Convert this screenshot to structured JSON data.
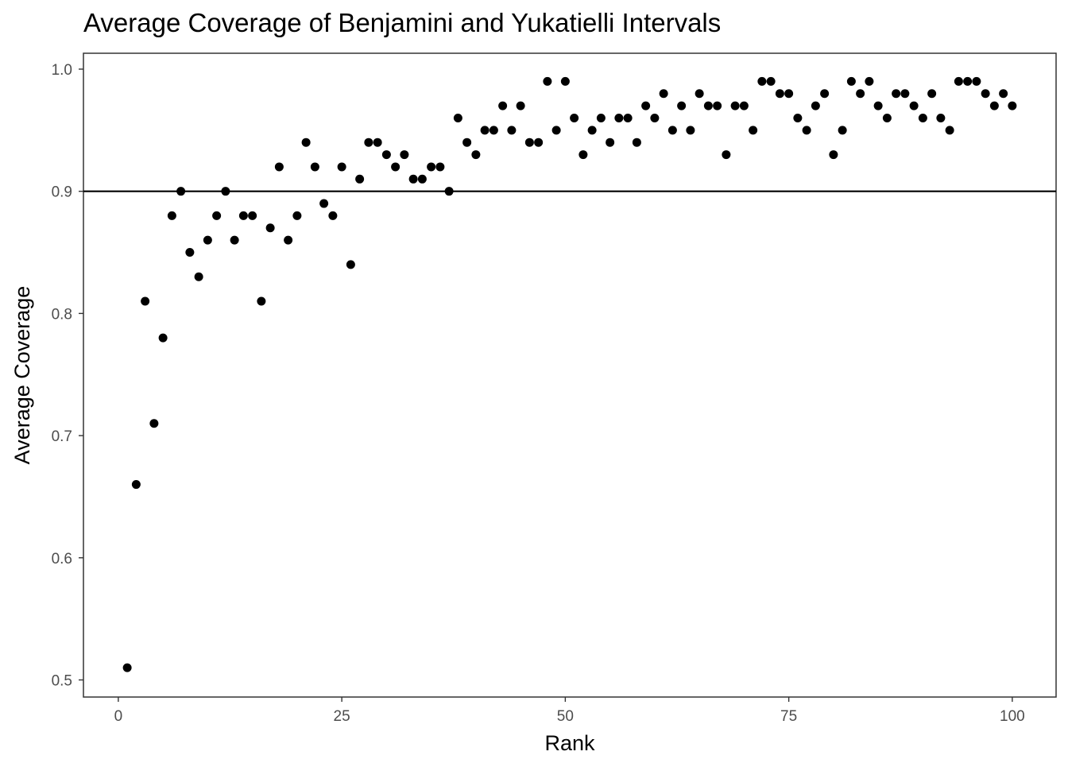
{
  "chart_data": {
    "type": "scatter",
    "title": "Average Coverage of Benjamini and Yukatielli Intervals",
    "xlabel": "Rank",
    "ylabel": "Average Coverage",
    "xlim": [
      -3.9,
      104.9
    ],
    "ylim": [
      0.486,
      1.013
    ],
    "x_ticks": [
      0,
      25,
      50,
      75,
      100
    ],
    "x_tick_labels": [
      "0",
      "25",
      "50",
      "75",
      "100"
    ],
    "y_ticks": [
      0.5,
      0.6,
      0.7,
      0.8,
      0.9,
      1.0
    ],
    "y_tick_labels": [
      "0.5",
      "0.6",
      "0.7",
      "0.8",
      "0.9",
      "1.0"
    ],
    "reference_line": {
      "orientation": "horizontal",
      "y": 0.9
    },
    "grid": false,
    "legend": "none",
    "point_color": "#000000",
    "series": [
      {
        "x": [
          1,
          2,
          3,
          4,
          5,
          6,
          7,
          8,
          9,
          10,
          11,
          12,
          13,
          14,
          15,
          16,
          17,
          18,
          19,
          20,
          21,
          22,
          23,
          24,
          25,
          26,
          27,
          28,
          29,
          30,
          31,
          32,
          33,
          34,
          35,
          36,
          37,
          38,
          39,
          40,
          41,
          42,
          43,
          44,
          45,
          46,
          47,
          48,
          49,
          50,
          51,
          52,
          53,
          54,
          55,
          56,
          57,
          58,
          59,
          60,
          61,
          62,
          63,
          64,
          65,
          66,
          67,
          68,
          69,
          70,
          71,
          72,
          73,
          74,
          75,
          76,
          77,
          78,
          79,
          80,
          81,
          82,
          83,
          84,
          85,
          86,
          87,
          88,
          89,
          90,
          91,
          92,
          93,
          94,
          95,
          96,
          97,
          98,
          99,
          100
        ],
        "y": [
          0.51,
          0.66,
          0.81,
          0.71,
          0.78,
          0.88,
          0.9,
          0.85,
          0.83,
          0.86,
          0.88,
          0.9,
          0.86,
          0.88,
          0.88,
          0.81,
          0.87,
          0.92,
          0.86,
          0.88,
          0.94,
          0.92,
          0.89,
          0.88,
          0.92,
          0.84,
          0.91,
          0.94,
          0.94,
          0.93,
          0.92,
          0.93,
          0.91,
          0.91,
          0.92,
          0.92,
          0.9,
          0.96,
          0.94,
          0.93,
          0.95,
          0.95,
          0.97,
          0.95,
          0.97,
          0.94,
          0.94,
          0.99,
          0.95,
          0.99,
          0.96,
          0.93,
          0.95,
          0.96,
          0.94,
          0.96,
          0.96,
          0.94,
          0.97,
          0.96,
          0.98,
          0.95,
          0.97,
          0.95,
          0.98,
          0.97,
          0.97,
          0.93,
          0.97,
          0.97,
          0.95,
          0.99,
          0.99,
          0.98,
          0.98,
          0.96,
          0.95,
          0.97,
          0.98,
          0.93,
          0.95,
          0.99,
          0.98,
          0.99,
          0.97,
          0.96,
          0.98,
          0.98,
          0.97,
          0.96,
          0.98,
          0.96,
          0.95,
          0.99,
          0.99,
          0.99,
          0.98,
          0.97,
          0.98,
          0.97
        ]
      }
    ]
  }
}
